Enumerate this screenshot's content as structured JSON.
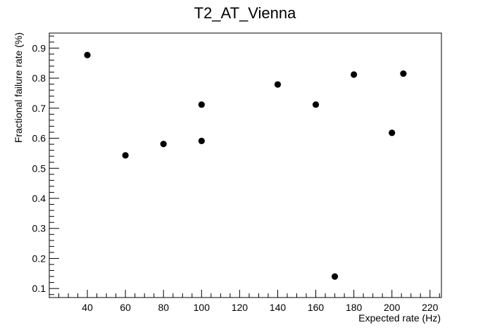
{
  "chart_data": {
    "type": "scatter",
    "title": "T2_AT_Vienna",
    "xlabel": "Expected rate (Hz)",
    "ylabel": "Fractional failure rate (%)",
    "xlim": [
      20,
      226
    ],
    "ylim": [
      0.07,
      0.95
    ],
    "x_ticks": [
      40,
      60,
      80,
      100,
      120,
      140,
      160,
      180,
      200,
      220
    ],
    "y_ticks": [
      0.1,
      0.2,
      0.3,
      0.4,
      0.5,
      0.6,
      0.7,
      0.8,
      0.9
    ],
    "grid": false,
    "points": [
      {
        "x": 40,
        "y": 0.877
      },
      {
        "x": 60,
        "y": 0.543
      },
      {
        "x": 80,
        "y": 0.581
      },
      {
        "x": 100,
        "y": 0.712
      },
      {
        "x": 100,
        "y": 0.591
      },
      {
        "x": 140,
        "y": 0.779
      },
      {
        "x": 160,
        "y": 0.712
      },
      {
        "x": 170,
        "y": 0.14
      },
      {
        "x": 180,
        "y": 0.812
      },
      {
        "x": 200,
        "y": 0.618
      },
      {
        "x": 206,
        "y": 0.815
      }
    ],
    "marker_color": "#000000"
  }
}
